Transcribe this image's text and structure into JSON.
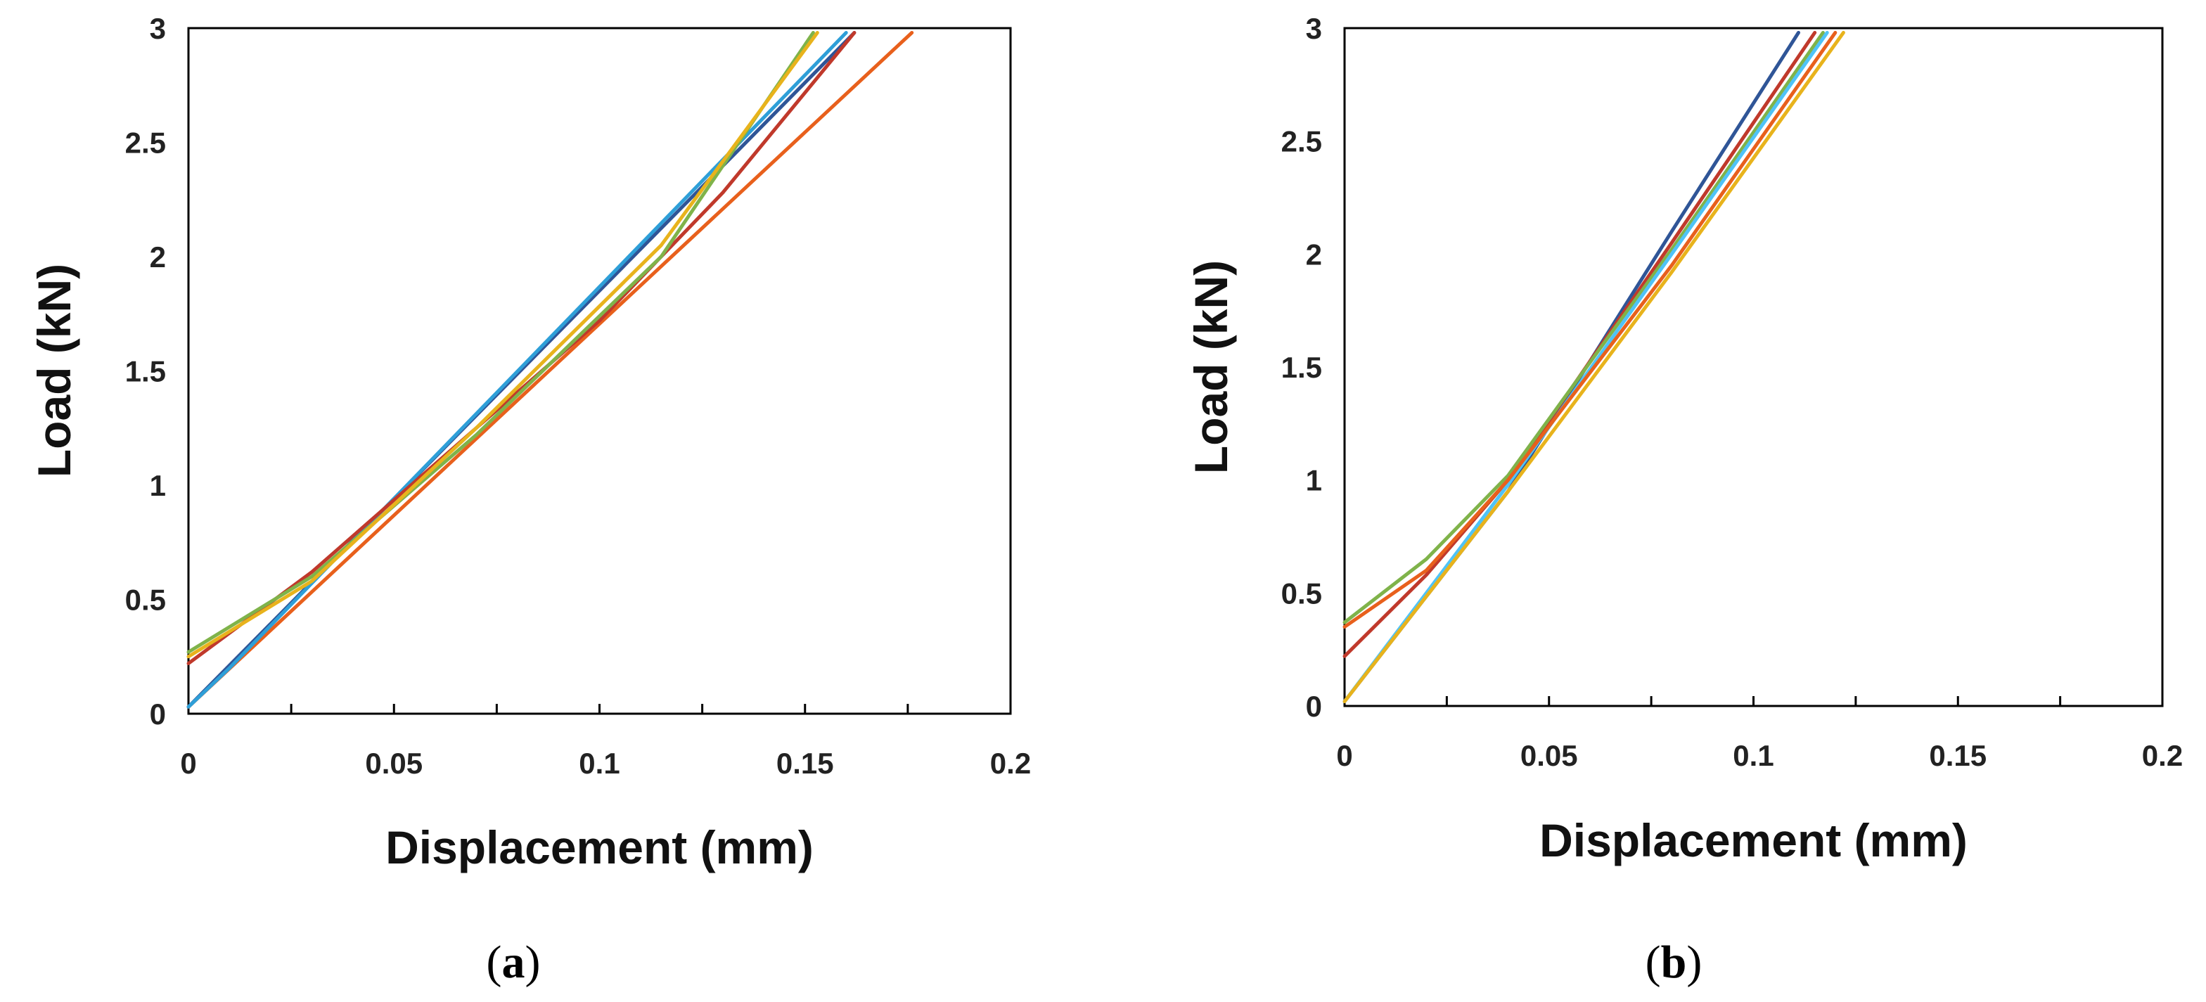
{
  "chart_data": [
    {
      "type": "line",
      "caption_letter": "a",
      "xlabel": "Displacement (mm)",
      "ylabel": "Load (kN)",
      "xlim": [
        0,
        0.2
      ],
      "ylim": [
        0,
        3
      ],
      "xticks": [
        "0",
        "0.05",
        "0.1",
        "0.15",
        "0.2"
      ],
      "yticks": [
        "0",
        "0.5",
        "1",
        "1.5",
        "2",
        "2.5",
        "3"
      ],
      "grid": false,
      "series": [
        {
          "color": "#e8601c",
          "points": [
            [
              0,
              0.03
            ],
            [
              0.176,
              2.98
            ]
          ]
        },
        {
          "color": "#2f5597",
          "points": [
            [
              0,
              0.03
            ],
            [
              0.162,
              2.98
            ]
          ]
        },
        {
          "color": "#2e9fd8",
          "points": [
            [
              0,
              0.03
            ],
            [
              0.01,
              0.2
            ],
            [
              0.16,
              2.98
            ]
          ]
        },
        {
          "color": "#c0392b",
          "points": [
            [
              0,
              0.22
            ],
            [
              0.03,
              0.62
            ],
            [
              0.07,
              1.25
            ],
            [
              0.1,
              1.72
            ],
            [
              0.13,
              2.28
            ],
            [
              0.162,
              2.98
            ]
          ]
        },
        {
          "color": "#7fb34a",
          "points": [
            [
              0,
              0.27
            ],
            [
              0.03,
              0.6
            ],
            [
              0.07,
              1.22
            ],
            [
              0.115,
              2.0
            ],
            [
              0.152,
              2.98
            ]
          ]
        },
        {
          "color": "#e8b31c",
          "points": [
            [
              0,
              0.25
            ],
            [
              0.03,
              0.58
            ],
            [
              0.07,
              1.25
            ],
            [
              0.115,
              2.05
            ],
            [
              0.153,
              2.98
            ]
          ]
        }
      ]
    },
    {
      "type": "line",
      "caption_letter": "b",
      "xlabel": "Displacement (mm)",
      "ylabel": "Load (kN)",
      "xlim": [
        0,
        0.2
      ],
      "ylim": [
        0,
        3
      ],
      "xticks": [
        "0",
        "0.05",
        "0.1",
        "0.15",
        "0.2"
      ],
      "yticks": [
        "0",
        "0.5",
        "1",
        "1.5",
        "2",
        "2.5",
        "3"
      ],
      "grid": false,
      "series": [
        {
          "color": "#2f5597",
          "points": [
            [
              0,
              0.02
            ],
            [
              0.04,
              0.95
            ],
            [
              0.08,
              2.1
            ],
            [
              0.111,
              2.98
            ]
          ]
        },
        {
          "color": "#c0392b",
          "points": [
            [
              0,
              0.22
            ],
            [
              0.02,
              0.58
            ],
            [
              0.04,
              1.0
            ],
            [
              0.08,
              2.05
            ],
            [
              0.115,
              2.98
            ]
          ]
        },
        {
          "color": "#7fb34a",
          "points": [
            [
              0,
              0.37
            ],
            [
              0.02,
              0.65
            ],
            [
              0.04,
              1.02
            ],
            [
              0.08,
              2.02
            ],
            [
              0.117,
              2.98
            ]
          ]
        },
        {
          "color": "#4fc3f7",
          "points": [
            [
              0,
              0.02
            ],
            [
              0.04,
              0.98
            ],
            [
              0.08,
              2.0
            ],
            [
              0.118,
              2.98
            ]
          ]
        },
        {
          "color": "#e8601c",
          "points": [
            [
              0,
              0.35
            ],
            [
              0.02,
              0.6
            ],
            [
              0.04,
              1.0
            ],
            [
              0.08,
              1.95
            ],
            [
              0.12,
              2.98
            ]
          ]
        },
        {
          "color": "#e8b31c",
          "points": [
            [
              0,
              0.02
            ],
            [
              0.04,
              0.95
            ],
            [
              0.08,
              1.92
            ],
            [
              0.122,
              2.98
            ]
          ]
        }
      ]
    }
  ]
}
